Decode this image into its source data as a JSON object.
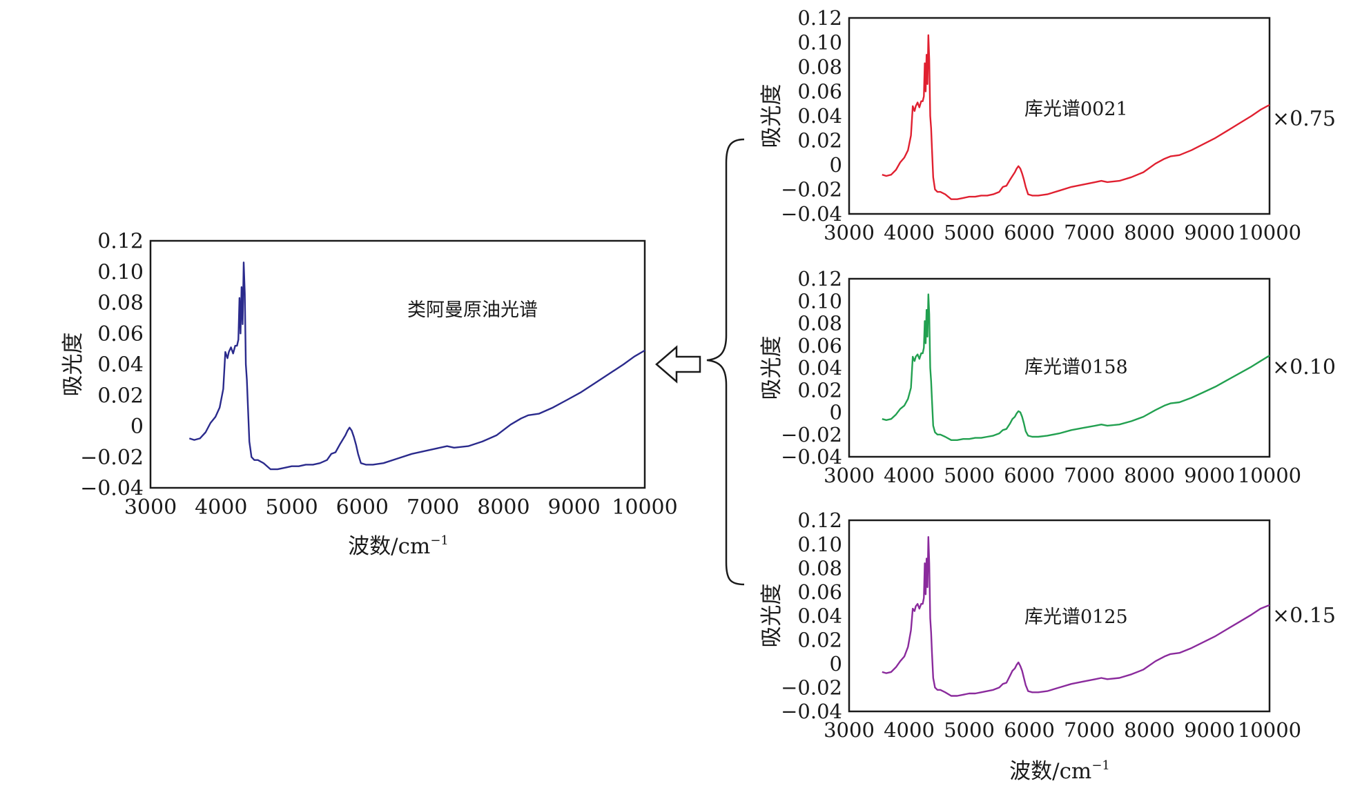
{
  "chart_data": [
    {
      "type": "line",
      "title": "类阿曼原油光谱",
      "xlabel": "波数/cm",
      "xlabel_sup": "−1",
      "ylabel": "吸光度",
      "xlim": [
        3000,
        10000
      ],
      "ylim": [
        -0.04,
        0.12
      ],
      "xticks": [
        "3000",
        "4000",
        "5000",
        "6000",
        "7000",
        "8000",
        "9000",
        "10000"
      ],
      "yticks": [
        "0.12",
        "0.10",
        "0.08",
        "0.06",
        "0.04",
        "0.02",
        "0",
        "−0.02",
        "−0.04"
      ],
      "color": "#2a2a8c",
      "series": [
        {
          "x": [
            3550,
            3620,
            3700,
            3780,
            3850,
            3920,
            3980,
            4030,
            4060,
            4090,
            4110,
            4140,
            4170,
            4200,
            4225,
            4245,
            4260,
            4275,
            4290,
            4305,
            4320,
            4335,
            4350,
            4365,
            4380,
            4400,
            4430,
            4470,
            4520,
            4600,
            4700,
            4800,
            4900,
            5000,
            5100,
            5200,
            5300,
            5400,
            5500,
            5560,
            5620,
            5680,
            5720,
            5760,
            5790,
            5820,
            5850,
            5880,
            5910,
            5940,
            5980,
            6050,
            6150,
            6300,
            6500,
            6700,
            6900,
            7100,
            7200,
            7300,
            7500,
            7700,
            7900,
            8100,
            8250,
            8350,
            8500,
            8700,
            8900,
            9100,
            9300,
            9500,
            9700,
            9850,
            10000
          ],
          "y": [
            -0.008,
            -0.009,
            -0.008,
            -0.004,
            0.002,
            0.006,
            0.012,
            0.024,
            0.048,
            0.044,
            0.048,
            0.051,
            0.047,
            0.052,
            0.052,
            0.056,
            0.083,
            0.06,
            0.09,
            0.066,
            0.106,
            0.086,
            0.04,
            0.03,
            0.012,
            -0.01,
            -0.02,
            -0.022,
            -0.022,
            -0.024,
            -0.028,
            -0.028,
            -0.027,
            -0.026,
            -0.026,
            -0.025,
            -0.025,
            -0.024,
            -0.022,
            -0.018,
            -0.017,
            -0.012,
            -0.009,
            -0.006,
            -0.003,
            -0.001,
            -0.003,
            -0.007,
            -0.012,
            -0.018,
            -0.024,
            -0.025,
            -0.025,
            -0.024,
            -0.021,
            -0.018,
            -0.016,
            -0.014,
            -0.013,
            -0.014,
            -0.013,
            -0.01,
            -0.006,
            0.001,
            0.005,
            0.007,
            0.008,
            0.012,
            0.017,
            0.022,
            0.028,
            0.034,
            0.04,
            0.045,
            0.049
          ]
        }
      ]
    },
    {
      "type": "line",
      "title": "库光谱0021",
      "ylabel": "吸光度",
      "annotation": "×0.75",
      "xlim": [
        3000,
        10000
      ],
      "ylim": [
        -0.04,
        0.12
      ],
      "xticks": [
        "3000",
        "4000",
        "5000",
        "6000",
        "7000",
        "8000",
        "9000",
        "10000"
      ],
      "yticks": [
        "0.12",
        "0.10",
        "0.08",
        "0.06",
        "0.04",
        "0.02",
        "0",
        "−0.02",
        "−0.04"
      ],
      "color": "#e02030",
      "series": [
        {
          "x": [
            3550,
            3620,
            3700,
            3780,
            3850,
            3920,
            3980,
            4030,
            4060,
            4090,
            4110,
            4140,
            4170,
            4200,
            4225,
            4245,
            4260,
            4275,
            4290,
            4305,
            4320,
            4335,
            4350,
            4365,
            4380,
            4400,
            4430,
            4470,
            4520,
            4600,
            4700,
            4800,
            4900,
            5000,
            5100,
            5200,
            5300,
            5400,
            5500,
            5560,
            5620,
            5680,
            5720,
            5760,
            5790,
            5820,
            5850,
            5880,
            5910,
            5940,
            5980,
            6050,
            6150,
            6300,
            6500,
            6700,
            6900,
            7100,
            7200,
            7300,
            7500,
            7700,
            7900,
            8100,
            8250,
            8350,
            8500,
            8700,
            8900,
            9100,
            9300,
            9500,
            9700,
            9850,
            10000
          ],
          "y": [
            -0.008,
            -0.009,
            -0.008,
            -0.004,
            0.002,
            0.006,
            0.012,
            0.024,
            0.048,
            0.044,
            0.048,
            0.051,
            0.047,
            0.052,
            0.052,
            0.056,
            0.083,
            0.06,
            0.09,
            0.066,
            0.106,
            0.086,
            0.04,
            0.03,
            0.012,
            -0.01,
            -0.02,
            -0.022,
            -0.022,
            -0.024,
            -0.028,
            -0.028,
            -0.027,
            -0.026,
            -0.026,
            -0.025,
            -0.025,
            -0.024,
            -0.022,
            -0.018,
            -0.017,
            -0.012,
            -0.009,
            -0.006,
            -0.003,
            -0.001,
            -0.003,
            -0.007,
            -0.012,
            -0.018,
            -0.024,
            -0.025,
            -0.025,
            -0.024,
            -0.021,
            -0.018,
            -0.016,
            -0.014,
            -0.013,
            -0.014,
            -0.013,
            -0.01,
            -0.006,
            0.001,
            0.005,
            0.007,
            0.008,
            0.012,
            0.017,
            0.022,
            0.028,
            0.034,
            0.04,
            0.045,
            0.049
          ]
        }
      ]
    },
    {
      "type": "line",
      "title": "库光谱0158",
      "ylabel": "吸光度",
      "annotation": "×0.10",
      "xlim": [
        3000,
        10000
      ],
      "ylim": [
        -0.04,
        0.12
      ],
      "xticks": [
        "3000",
        "4000",
        "5000",
        "6000",
        "7000",
        "8000",
        "9000",
        "10000"
      ],
      "yticks": [
        "0.12",
        "0.10",
        "0.08",
        "0.06",
        "0.04",
        "0.02",
        "0",
        "−0.02",
        "−0.04"
      ],
      "color": "#22a050",
      "series": [
        {
          "x": [
            3550,
            3620,
            3700,
            3780,
            3850,
            3920,
            3980,
            4030,
            4060,
            4090,
            4110,
            4140,
            4170,
            4200,
            4225,
            4245,
            4260,
            4275,
            4290,
            4305,
            4320,
            4335,
            4350,
            4365,
            4380,
            4400,
            4430,
            4470,
            4520,
            4600,
            4700,
            4800,
            4900,
            5000,
            5100,
            5200,
            5300,
            5400,
            5500,
            5560,
            5620,
            5680,
            5720,
            5760,
            5790,
            5820,
            5850,
            5880,
            5910,
            5940,
            5980,
            6050,
            6150,
            6300,
            6500,
            6700,
            6900,
            7100,
            7200,
            7300,
            7500,
            7700,
            7900,
            8100,
            8250,
            8350,
            8500,
            8700,
            8900,
            9100,
            9300,
            9500,
            9700,
            9850,
            10000
          ],
          "y": [
            -0.006,
            -0.007,
            -0.006,
            -0.002,
            0.003,
            0.006,
            0.012,
            0.022,
            0.05,
            0.046,
            0.05,
            0.052,
            0.048,
            0.053,
            0.053,
            0.058,
            0.082,
            0.062,
            0.092,
            0.068,
            0.106,
            0.088,
            0.04,
            0.028,
            0.01,
            -0.012,
            -0.018,
            -0.02,
            -0.02,
            -0.022,
            -0.025,
            -0.025,
            -0.024,
            -0.024,
            -0.023,
            -0.023,
            -0.022,
            -0.021,
            -0.019,
            -0.016,
            -0.015,
            -0.01,
            -0.006,
            -0.004,
            -0.001,
            0.001,
            0.0,
            -0.004,
            -0.01,
            -0.017,
            -0.021,
            -0.022,
            -0.022,
            -0.021,
            -0.019,
            -0.016,
            -0.014,
            -0.012,
            -0.011,
            -0.012,
            -0.011,
            -0.008,
            -0.004,
            0.002,
            0.006,
            0.008,
            0.009,
            0.013,
            0.018,
            0.023,
            0.029,
            0.035,
            0.041,
            0.046,
            0.051
          ]
        }
      ]
    },
    {
      "type": "line",
      "title": "库光谱0125",
      "xlabel": "波数/cm",
      "xlabel_sup": "−1",
      "ylabel": "吸光度",
      "annotation": "×0.15",
      "xlim": [
        3000,
        10000
      ],
      "ylim": [
        -0.04,
        0.12
      ],
      "xticks": [
        "3000",
        "4000",
        "5000",
        "6000",
        "7000",
        "8000",
        "9000",
        "10000"
      ],
      "yticks": [
        "0.12",
        "0.10",
        "0.08",
        "0.06",
        "0.04",
        "0.02",
        "0",
        "−0.02",
        "−0.04"
      ],
      "color": "#8a2a9c",
      "series": [
        {
          "x": [
            3550,
            3620,
            3700,
            3780,
            3850,
            3920,
            3980,
            4030,
            4060,
            4090,
            4110,
            4140,
            4170,
            4200,
            4225,
            4245,
            4260,
            4275,
            4290,
            4305,
            4320,
            4335,
            4350,
            4365,
            4380,
            4400,
            4430,
            4470,
            4520,
            4600,
            4700,
            4800,
            4900,
            5000,
            5100,
            5200,
            5300,
            5400,
            5500,
            5560,
            5620,
            5680,
            5720,
            5760,
            5790,
            5820,
            5850,
            5880,
            5910,
            5940,
            5980,
            6050,
            6150,
            6300,
            6500,
            6700,
            6900,
            7100,
            7200,
            7300,
            7500,
            7700,
            7900,
            8100,
            8250,
            8350,
            8500,
            8700,
            8900,
            9100,
            9300,
            9500,
            9700,
            9850,
            10000
          ],
          "y": [
            -0.007,
            -0.008,
            -0.007,
            -0.003,
            0.002,
            0.006,
            0.014,
            0.028,
            0.046,
            0.044,
            0.048,
            0.05,
            0.046,
            0.05,
            0.05,
            0.055,
            0.084,
            0.058,
            0.088,
            0.064,
            0.106,
            0.084,
            0.038,
            0.026,
            0.008,
            -0.012,
            -0.02,
            -0.022,
            -0.022,
            -0.024,
            -0.027,
            -0.027,
            -0.026,
            -0.025,
            -0.025,
            -0.024,
            -0.023,
            -0.022,
            -0.02,
            -0.017,
            -0.016,
            -0.01,
            -0.006,
            -0.004,
            -0.001,
            0.001,
            -0.002,
            -0.006,
            -0.012,
            -0.018,
            -0.023,
            -0.024,
            -0.024,
            -0.023,
            -0.02,
            -0.017,
            -0.015,
            -0.013,
            -0.012,
            -0.013,
            -0.012,
            -0.009,
            -0.005,
            0.002,
            0.006,
            0.008,
            0.009,
            0.013,
            0.018,
            0.023,
            0.029,
            0.035,
            0.041,
            0.046,
            0.049
          ]
        }
      ]
    }
  ]
}
